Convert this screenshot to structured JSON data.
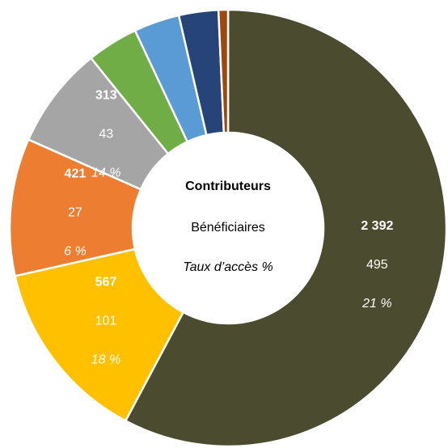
{
  "chart_data": {
    "type": "donut",
    "center_labels": [
      "Contributeurs",
      "Bénéficiaires",
      "Taux d’accès %"
    ],
    "values": [
      2392,
      567,
      421,
      313,
      157,
      140,
      121,
      29
    ],
    "value_labels": [
      "2 392",
      "567",
      "421",
      "313",
      null,
      null,
      null,
      null
    ],
    "beneficiaries": [
      495,
      101,
      27,
      43,
      null,
      null,
      null,
      null
    ],
    "access_rate": [
      21,
      18,
      6,
      14,
      null,
      null,
      null,
      null
    ],
    "access_rate_labels": [
      "21 %",
      "18 %",
      "6 %",
      "14 %",
      null,
      null,
      null,
      null
    ],
    "colors": [
      "#4a4b2f",
      "#ffc000",
      "#ed7d31",
      "#a5a5a5",
      "#70ad47",
      "#5b9bd5",
      "#264478",
      "#9e480e"
    ]
  }
}
